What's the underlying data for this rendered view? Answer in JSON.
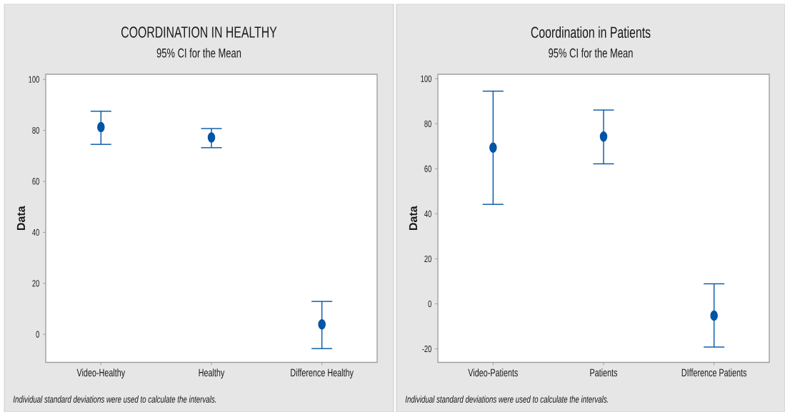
{
  "chart_data": [
    {
      "type": "scatter",
      "title": "COORDINATION IN HEALTHY",
      "subtitle": "95% CI for the Mean",
      "ylabel": "Data",
      "categories": [
        "Video-Healthy",
        "Healthy",
        "Difference Healthy"
      ],
      "values": [
        81.3,
        77.2,
        3.9
      ],
      "errors": [
        [
          74.5,
          87.5
        ],
        [
          73.2,
          80.7
        ],
        [
          -5.6,
          12.9
        ]
      ],
      "color": "#0054a6",
      "marker": "circle",
      "ylim": [
        -11,
        102
      ],
      "yticks": [
        0,
        20,
        40,
        60,
        80,
        100
      ],
      "annotations": [
        "Individual standard deviations were used to calculate the intervals."
      ]
    },
    {
      "type": "scatter",
      "title": "Coordination in Patients",
      "subtitle": "95% CI for the Mean",
      "ylabel": "Data",
      "categories": [
        "Video-Patients",
        "Patients",
        "DIfference Patients"
      ],
      "values": [
        69.4,
        74.3,
        -5.2
      ],
      "errors": [
        [
          44.2,
          94.5
        ],
        [
          62.2,
          86.1
        ],
        [
          -19.2,
          8.9
        ]
      ],
      "color": "#0054a6",
      "marker": "circle",
      "ylim": [
        -26,
        102
      ],
      "yticks": [
        -20,
        0,
        20,
        40,
        60,
        80,
        100
      ],
      "annotations": [
        "Individual standard deviations were used to calculate the intervals."
      ]
    }
  ]
}
